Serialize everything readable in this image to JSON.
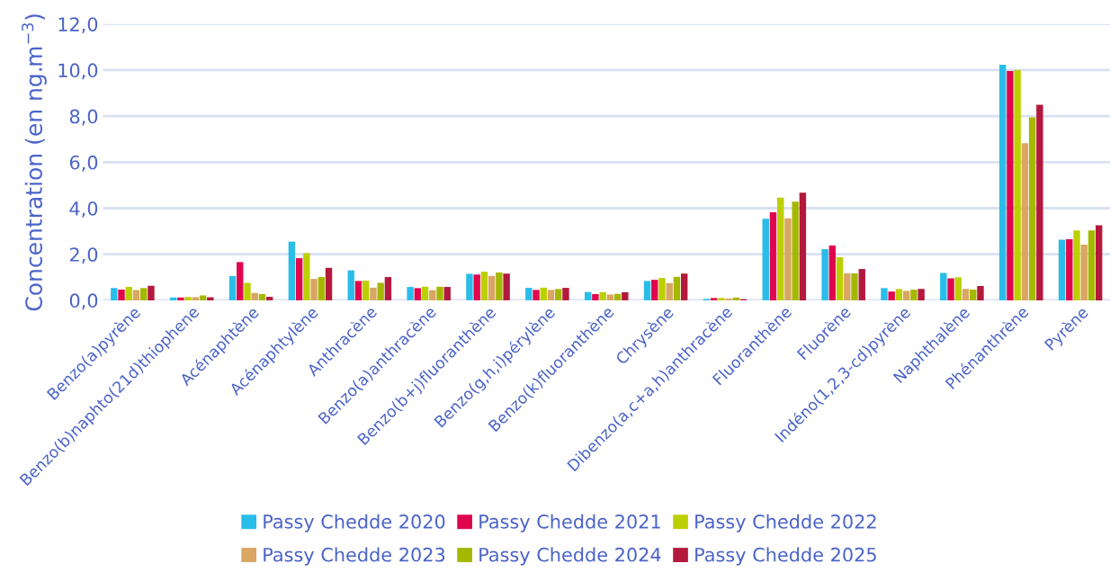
{
  "chart_data": {
    "type": "bar",
    "ylabel": "Concentration (en ng.m$^{−3}$)",
    "categories": [
      "Benzo(a)pyrène",
      "Benzo(b)naphto(21d)thiophene",
      "Acénaphtène",
      "Acénaphtylène",
      "Anthracène",
      "Benzo(a)anthracène",
      "Benzo(b+j)fluoranthène",
      "Benzo(g,h,i)pérylène",
      "Benzo(k)fluoranthène",
      "Chrysène",
      "Dibenzo(a,c+a,h)anthracène",
      "Fluoranthène",
      "Fluorène",
      "Indéno(1,2,3-cd)pyrène",
      "Naphthalène",
      "Phénanthrène",
      "Pyrène"
    ],
    "series": [
      {
        "name": "Passy Chedde 2020",
        "color": "#29bde9",
        "values": [
          0.53,
          0.12,
          1.05,
          2.55,
          1.3,
          0.58,
          1.15,
          0.54,
          0.36,
          0.84,
          0.06,
          3.54,
          2.22,
          0.53,
          1.19,
          10.23,
          2.63
        ]
      },
      {
        "name": "Passy Chedde 2021",
        "color": "#e0064e",
        "values": [
          0.46,
          0.12,
          1.66,
          1.83,
          0.84,
          0.53,
          1.12,
          0.45,
          0.27,
          0.89,
          0.1,
          3.82,
          2.38,
          0.38,
          0.95,
          9.96,
          2.65
        ]
      },
      {
        "name": "Passy Chedde 2022",
        "color": "#bccf00",
        "values": [
          0.58,
          0.14,
          0.76,
          2.05,
          0.85,
          0.59,
          1.24,
          0.55,
          0.35,
          0.97,
          0.1,
          4.46,
          1.87,
          0.49,
          1.0,
          10.01,
          3.03
        ]
      },
      {
        "name": "Passy Chedde 2023",
        "color": "#d9a663",
        "values": [
          0.45,
          0.13,
          0.32,
          0.93,
          0.55,
          0.44,
          1.06,
          0.45,
          0.25,
          0.75,
          0.08,
          3.56,
          1.17,
          0.41,
          0.49,
          6.82,
          2.42
        ]
      },
      {
        "name": "Passy Chedde 2024",
        "color": "#a5b800",
        "values": [
          0.53,
          0.21,
          0.27,
          1.01,
          0.76,
          0.59,
          1.21,
          0.49,
          0.28,
          1.02,
          0.12,
          4.28,
          1.17,
          0.46,
          0.46,
          7.95,
          3.03
        ]
      },
      {
        "name": "Passy Chedde 2025",
        "color": "#b3193d",
        "values": [
          0.63,
          0.13,
          0.15,
          1.41,
          1.01,
          0.58,
          1.16,
          0.54,
          0.35,
          1.16,
          0.05,
          4.67,
          1.36,
          0.49,
          0.62,
          8.49,
          3.26
        ]
      }
    ],
    "ylim": [
      0,
      12
    ],
    "yticks": [
      {
        "value": 0,
        "label": "0,0"
      },
      {
        "value": 2,
        "label": "2,0"
      },
      {
        "value": 4,
        "label": "4,0"
      },
      {
        "value": 6,
        "label": "6,0"
      },
      {
        "value": 8,
        "label": "8,0"
      },
      {
        "value": 10,
        "label": "10,0"
      },
      {
        "value": 12,
        "label": "12,0"
      }
    ],
    "grid": "y",
    "legend": "bottom"
  }
}
